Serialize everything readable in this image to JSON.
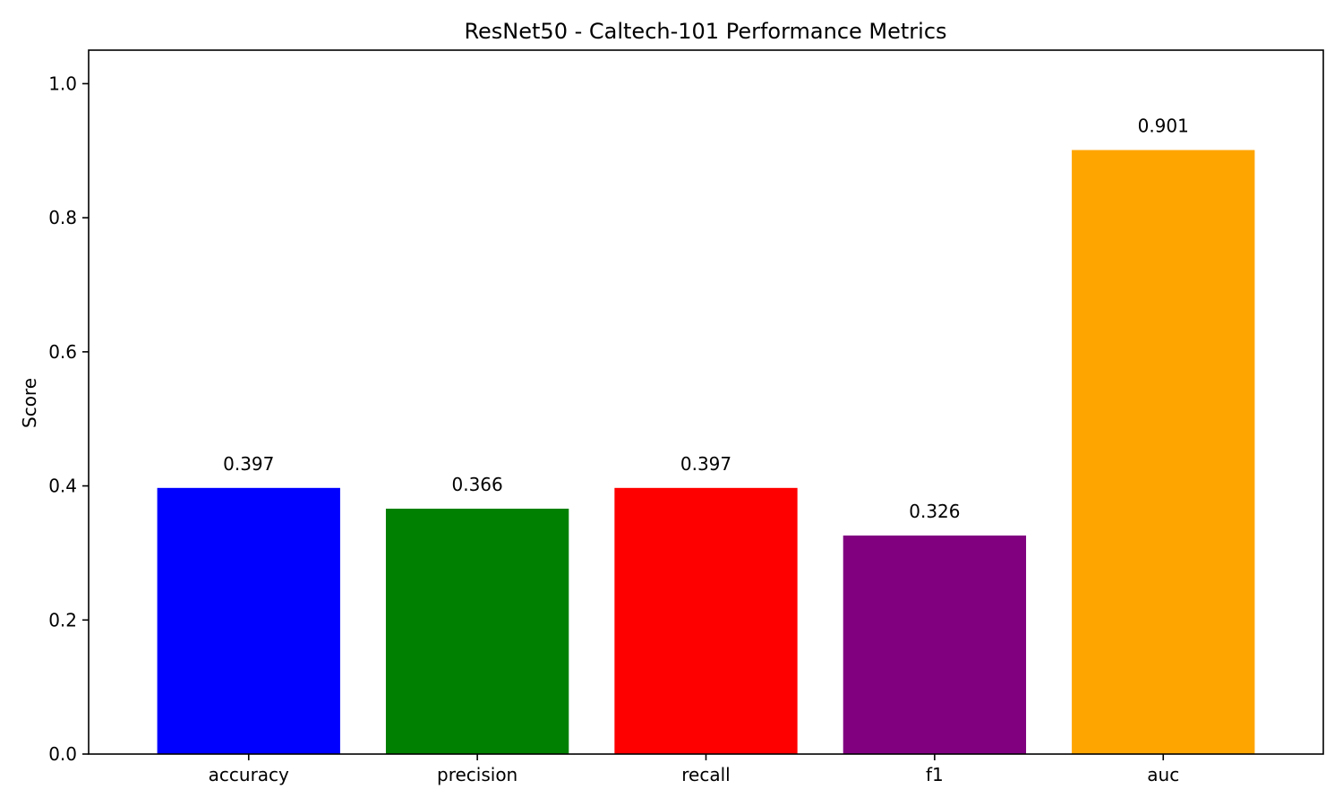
{
  "chart_data": {
    "type": "bar",
    "title": "ResNet50 - Caltech-101 Performance Metrics",
    "xlabel": "",
    "ylabel": "Score",
    "categories": [
      "accuracy",
      "precision",
      "recall",
      "f1",
      "auc"
    ],
    "values": [
      0.397,
      0.366,
      0.397,
      0.326,
      0.901
    ],
    "value_labels": [
      "0.397",
      "0.366",
      "0.397",
      "0.326",
      "0.901"
    ],
    "colors": [
      "#0000ff",
      "#008000",
      "#ff0000",
      "#800080",
      "#ffa500"
    ],
    "ylim": [
      0,
      1.05
    ],
    "yticks": [
      0.0,
      0.2,
      0.4,
      0.6,
      0.8,
      1.0
    ],
    "ytick_labels": [
      "0.0",
      "0.2",
      "0.4",
      "0.6",
      "0.8",
      "1.0"
    ],
    "grid": false,
    "legend": "none"
  }
}
